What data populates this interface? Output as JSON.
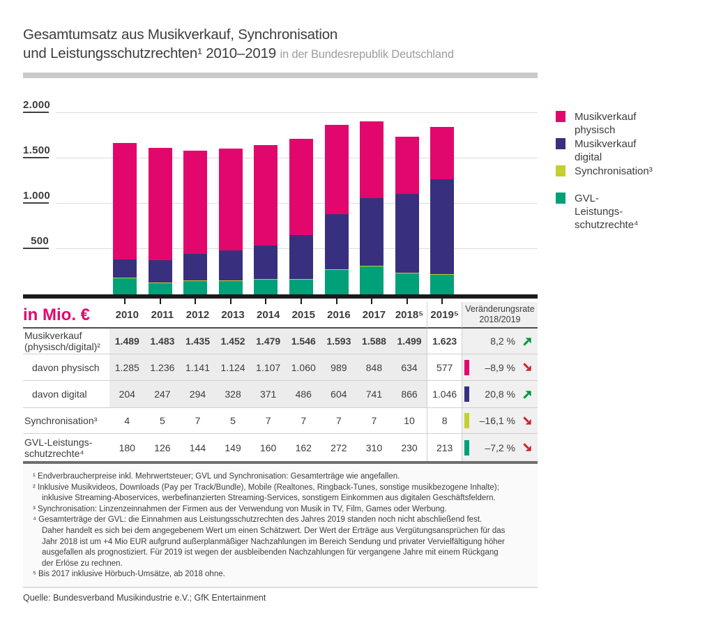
{
  "title": {
    "line1": "Gesamtumsatz aus Musikverkauf, Synchronisation",
    "line2_main": "und Leistungsschutzrechten¹ 2010–2019 ",
    "line2_sub": "in der Bundesrepublik Deutschland"
  },
  "colors": {
    "physisch": "#e2076d",
    "digital": "#38307e",
    "synchronisation": "#c3d02f",
    "gvl": "#00a078",
    "up": "#009640",
    "down": "#cf2129",
    "axis": "#1a1a1a",
    "grid": "#dcdcdc"
  },
  "chart_data": {
    "type": "bar",
    "stacked": true,
    "unit": "Mio. €",
    "categories": [
      "2010",
      "2011",
      "2012",
      "2013",
      "2014",
      "2015",
      "2016",
      "2017",
      "2018",
      "2019"
    ],
    "series": [
      {
        "key": "physisch",
        "name": "Musikverkauf physisch",
        "color": "#e2076d",
        "values": [
          1285,
          1236,
          1141,
          1124,
          1107,
          1060,
          989,
          848,
          634,
          577
        ]
      },
      {
        "key": "digital",
        "name": "Musikverkauf digital",
        "color": "#38307e",
        "values": [
          204,
          247,
          294,
          328,
          371,
          486,
          604,
          741,
          866,
          1046
        ]
      },
      {
        "key": "synchronisation",
        "name": "Synchronisation",
        "color": "#c3d02f",
        "values": [
          4,
          5,
          7,
          5,
          7,
          7,
          7,
          7,
          10,
          8
        ]
      },
      {
        "key": "gvl",
        "name": "GVL-Leistungsschutzrechte",
        "color": "#00a078",
        "values": [
          180,
          126,
          144,
          149,
          160,
          162,
          272,
          310,
          230,
          213
        ]
      }
    ],
    "stack_order_bottom_to_top": [
      "gvl",
      "synchronisation",
      "digital",
      "physisch"
    ],
    "ylim": [
      0,
      2000
    ],
    "yticks": [
      500,
      1000,
      1500,
      2000
    ],
    "ytick_labels": [
      "500",
      "1.000",
      "1.500",
      "2.000"
    ],
    "grid": true,
    "legend_position": "right",
    "legend": [
      {
        "key": "physisch",
        "label": "Musikverkauf physisch"
      },
      {
        "key": "digital",
        "label": "Musikverkauf digital"
      },
      {
        "key": "synchronisation",
        "label": "Synchronisation³"
      },
      {
        "key": "gvl",
        "label": "GVL-Leistungs-\nschutzrechte⁴"
      }
    ]
  },
  "table": {
    "unit_label": "in Mio. €",
    "year_columns": [
      "2010",
      "2011",
      "2012",
      "2013",
      "2014",
      "2015",
      "2016",
      "2017",
      "2018⁵"
    ],
    "year_2019": "2019⁵",
    "change_header": "Veränderungsrate\n2018/2019",
    "rows": [
      {
        "key": "musikverkauf-gesamt",
        "label": "Musikverkauf\n(physisch/digital)²",
        "indent": false,
        "bold": true,
        "chip": null,
        "values": [
          "1.489",
          "1.483",
          "1.435",
          "1.452",
          "1.479",
          "1.546",
          "1.593",
          "1.588",
          "1.499"
        ],
        "value_2019": "1.623",
        "change": "8,2 %",
        "trend": "up"
      },
      {
        "key": "davon-physisch",
        "label": "davon physisch",
        "indent": true,
        "bold": false,
        "chip": "physisch",
        "values": [
          "1.285",
          "1.236",
          "1.141",
          "1.124",
          "1.107",
          "1.060",
          "989",
          "848",
          "634"
        ],
        "value_2019": "577",
        "change": "–8,9 %",
        "trend": "down"
      },
      {
        "key": "davon-digital",
        "label": "davon digital",
        "indent": true,
        "bold": false,
        "chip": "digital",
        "values": [
          "204",
          "247",
          "294",
          "328",
          "371",
          "486",
          "604",
          "741",
          "866"
        ],
        "value_2019": "1.046",
        "change": "20,8 %",
        "trend": "up"
      },
      {
        "key": "synchronisation",
        "label": "Synchronisation³",
        "indent": false,
        "bold": false,
        "chip": "synchronisation",
        "values": [
          "4",
          "5",
          "7",
          "5",
          "7",
          "7",
          "7",
          "7",
          "10"
        ],
        "value_2019": "8",
        "change": "–16,1 %",
        "trend": "down"
      },
      {
        "key": "gvl",
        "label": "GVL-Leistungs-\nschutzrechte⁴",
        "indent": false,
        "bold": false,
        "chip": "gvl",
        "values": [
          "180",
          "126",
          "144",
          "149",
          "160",
          "162",
          "272",
          "310",
          "230"
        ],
        "value_2019": "213",
        "change": "–7,2 %",
        "trend": "down"
      }
    ]
  },
  "footnotes": [
    "¹ Endverbraucherpreise inkl. Mehrwertsteuer; GVL und Synchronisation: Gesamterträge wie angefallen.",
    "² Inklusive Musikvideos, Downloads (Pay per Track/Bundle), Mobile (Realtones, Ringback-Tunes, sonstige musikbezogene Inhalte);\ninklusive Streaming-Aboservices, werbefinanzierten Streaming-Services, sonstigem Einkommen aus digitalen Geschäftsfeldern.",
    "³ Synchronisation: Linzenzeinnahmen der Firmen aus der Verwendung von Musik in TV, Film, Games oder Werbung.",
    "⁴ Gesamterträge der GVL: die Einnahmen aus Leistungsschutzrechten des Jahres 2019 standen noch nicht abschließend fest.\nDaher handelt es sich bei dem angegebenem Wert um einen Schätzwert. Der Wert der Erträge aus Vergütungsansprüchen für das\nJahr 2018 ist um +4 Mio EUR aufgrund außerplanmäßiger Nachzahlungen im Bereich Sendung und privater Vervielfältigung höher\nausgefallen als prognostiziert. Für 2019 ist wegen der ausbleibenden Nachzahlungen für vergangene Jahre mit einem Rückgang\nder Erlöse zu rechnen.",
    "⁵ Bis 2017 inklusive Hörbuch-Umsätze, ab 2018 ohne."
  ],
  "source": "Quelle: Bundesverband Musikindustrie e.V.; GfK Entertainment"
}
